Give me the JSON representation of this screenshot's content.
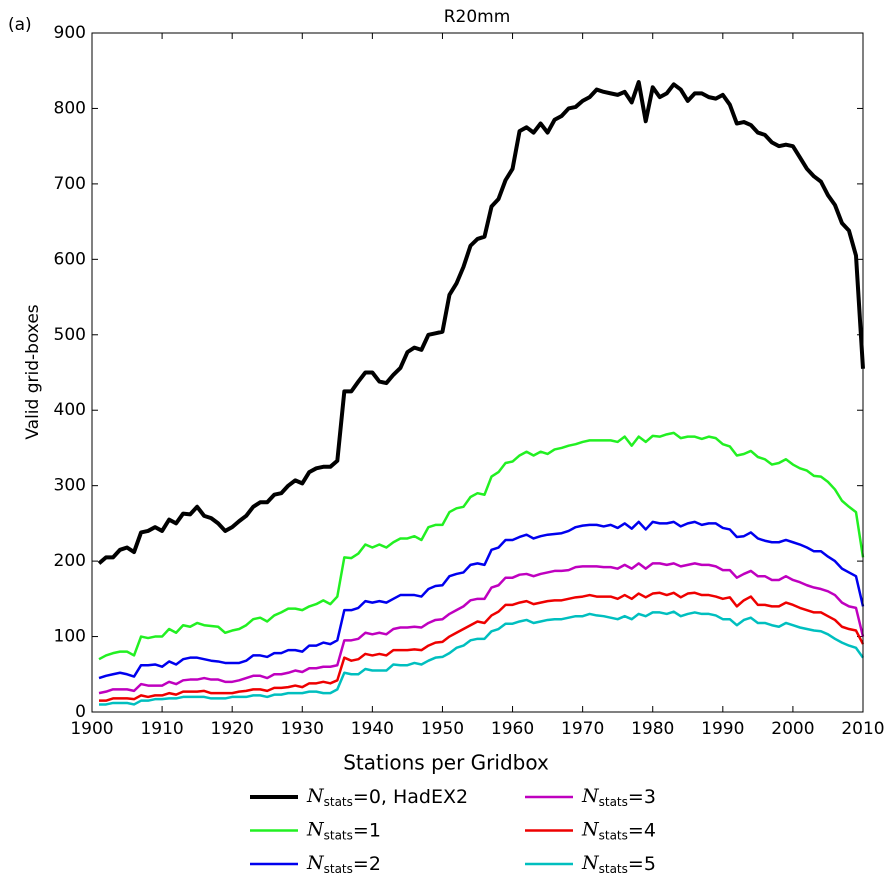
{
  "chart_data": {
    "type": "line",
    "panel_label": "(a)",
    "title": "R20mm",
    "x_label": "Stations per Gridbox",
    "y_label": "Valid grid-boxes",
    "xlim": [
      1900,
      2010
    ],
    "xticks": [
      1900,
      1910,
      1920,
      1930,
      1940,
      1950,
      1960,
      1970,
      1980,
      1990,
      2000,
      2010
    ],
    "ylim": [
      0,
      900
    ],
    "yticks": [
      0,
      100,
      200,
      300,
      400,
      500,
      600,
      700,
      800,
      900
    ],
    "x": [
      1901,
      1902,
      1903,
      1904,
      1905,
      1906,
      1907,
      1908,
      1909,
      1910,
      1911,
      1912,
      1913,
      1914,
      1915,
      1916,
      1917,
      1918,
      1919,
      1920,
      1921,
      1922,
      1923,
      1924,
      1925,
      1926,
      1927,
      1928,
      1929,
      1930,
      1931,
      1932,
      1933,
      1934,
      1935,
      1936,
      1937,
      1938,
      1939,
      1940,
      1941,
      1942,
      1943,
      1944,
      1945,
      1946,
      1947,
      1948,
      1949,
      1950,
      1951,
      1952,
      1953,
      1954,
      1955,
      1956,
      1957,
      1958,
      1959,
      1960,
      1961,
      1962,
      1963,
      1964,
      1965,
      1966,
      1967,
      1968,
      1969,
      1970,
      1971,
      1972,
      1973,
      1974,
      1975,
      1976,
      1977,
      1978,
      1979,
      1980,
      1981,
      1982,
      1983,
      1984,
      1985,
      1986,
      1987,
      1988,
      1989,
      1990,
      1991,
      1992,
      1993,
      1994,
      1995,
      1996,
      1997,
      1998,
      1999,
      2000,
      2001,
      2002,
      2003,
      2004,
      2005,
      2006,
      2007,
      2008,
      2009,
      2010
    ],
    "series": [
      {
        "name": "Nstats=0, HadEX2",
        "color": "#000000",
        "values": [
          197,
          205,
          205,
          215,
          218,
          212,
          238,
          240,
          245,
          240,
          255,
          250,
          263,
          262,
          272,
          260,
          257,
          250,
          240,
          245,
          253,
          260,
          272,
          278,
          278,
          288,
          290,
          300,
          307,
          303,
          318,
          323,
          325,
          325,
          333,
          425,
          425,
          438,
          450,
          450,
          438,
          436,
          447,
          456,
          477,
          483,
          480,
          500,
          502,
          504,
          553,
          568,
          590,
          618,
          627,
          630,
          670,
          680,
          705,
          720,
          770,
          775,
          768,
          780,
          768,
          785,
          790,
          800,
          802,
          810,
          815,
          825,
          822,
          820,
          818,
          822,
          808,
          835,
          783,
          828,
          815,
          820,
          832,
          825,
          810,
          820,
          820,
          815,
          813,
          818,
          805,
          780,
          782,
          778,
          768,
          765,
          755,
          750,
          752,
          750,
          735,
          720,
          710,
          703,
          685,
          672,
          648,
          638,
          605,
          455
        ]
      },
      {
        "name": "Nstats=1",
        "color": "#22f022",
        "values": [
          70,
          75,
          78,
          80,
          80,
          75,
          100,
          98,
          100,
          100,
          110,
          105,
          115,
          113,
          118,
          115,
          114,
          113,
          105,
          108,
          110,
          115,
          123,
          125,
          120,
          128,
          132,
          137,
          137,
          135,
          140,
          143,
          148,
          143,
          153,
          205,
          204,
          210,
          222,
          218,
          222,
          218,
          225,
          230,
          230,
          233,
          228,
          245,
          248,
          248,
          265,
          270,
          272,
          285,
          290,
          288,
          312,
          318,
          330,
          332,
          340,
          345,
          340,
          345,
          342,
          348,
          350,
          353,
          355,
          358,
          360,
          360,
          360,
          360,
          358,
          365,
          353,
          365,
          358,
          366,
          365,
          368,
          370,
          363,
          365,
          365,
          362,
          365,
          363,
          355,
          352,
          340,
          342,
          346,
          338,
          335,
          328,
          330,
          335,
          328,
          323,
          320,
          313,
          312,
          305,
          295,
          280,
          272,
          265,
          205
        ]
      },
      {
        "name": "Nstats=2",
        "color": "#0000ee",
        "values": [
          45,
          48,
          50,
          52,
          50,
          47,
          62,
          62,
          63,
          60,
          67,
          63,
          70,
          72,
          72,
          70,
          68,
          67,
          65,
          65,
          65,
          68,
          75,
          75,
          73,
          78,
          78,
          82,
          82,
          80,
          88,
          88,
          92,
          90,
          95,
          135,
          135,
          138,
          147,
          145,
          147,
          145,
          150,
          155,
          155,
          155,
          153,
          163,
          167,
          168,
          180,
          183,
          185,
          195,
          197,
          195,
          215,
          218,
          228,
          228,
          232,
          235,
          230,
          233,
          235,
          236,
          237,
          240,
          245,
          247,
          248,
          248,
          246,
          248,
          244,
          250,
          243,
          252,
          242,
          252,
          250,
          250,
          252,
          246,
          250,
          252,
          248,
          250,
          250,
          244,
          242,
          232,
          233,
          238,
          230,
          227,
          225,
          225,
          228,
          225,
          222,
          218,
          213,
          213,
          206,
          200,
          190,
          185,
          180,
          140
        ]
      },
      {
        "name": "Nstats=3",
        "color": "#bf00bf",
        "values": [
          25,
          27,
          30,
          30,
          30,
          28,
          37,
          35,
          35,
          35,
          40,
          37,
          42,
          43,
          43,
          45,
          43,
          43,
          40,
          40,
          42,
          45,
          48,
          48,
          45,
          50,
          50,
          52,
          55,
          53,
          58,
          58,
          60,
          60,
          62,
          95,
          95,
          97,
          105,
          103,
          105,
          103,
          110,
          112,
          112,
          113,
          112,
          118,
          122,
          123,
          130,
          135,
          140,
          148,
          150,
          150,
          165,
          168,
          178,
          178,
          182,
          183,
          180,
          183,
          185,
          187,
          187,
          188,
          192,
          193,
          193,
          193,
          192,
          192,
          190,
          195,
          190,
          197,
          190,
          197,
          197,
          195,
          197,
          193,
          195,
          197,
          195,
          195,
          193,
          188,
          188,
          178,
          183,
          187,
          180,
          180,
          175,
          175,
          180,
          175,
          172,
          168,
          165,
          163,
          160,
          155,
          145,
          140,
          138,
          100
        ]
      },
      {
        "name": "Nstats=4",
        "color": "#ee0000",
        "values": [
          15,
          15,
          18,
          18,
          18,
          17,
          22,
          20,
          22,
          22,
          25,
          23,
          27,
          27,
          27,
          28,
          25,
          25,
          25,
          25,
          27,
          28,
          30,
          30,
          28,
          32,
          32,
          33,
          35,
          33,
          38,
          38,
          40,
          38,
          42,
          72,
          68,
          70,
          77,
          75,
          77,
          75,
          82,
          82,
          82,
          83,
          82,
          88,
          92,
          93,
          100,
          105,
          110,
          115,
          120,
          118,
          128,
          133,
          142,
          142,
          145,
          147,
          143,
          145,
          147,
          148,
          148,
          150,
          152,
          153,
          155,
          153,
          153,
          153,
          150,
          155,
          150,
          157,
          152,
          157,
          158,
          155,
          158,
          152,
          157,
          158,
          155,
          155,
          153,
          150,
          152,
          140,
          148,
          153,
          142,
          142,
          140,
          140,
          145,
          142,
          138,
          135,
          132,
          132,
          127,
          122,
          113,
          110,
          108,
          90
        ]
      },
      {
        "name": "Nstats=5",
        "color": "#00bfbf",
        "values": [
          10,
          10,
          12,
          12,
          12,
          10,
          15,
          15,
          17,
          17,
          18,
          18,
          20,
          20,
          20,
          20,
          18,
          18,
          18,
          20,
          20,
          20,
          22,
          22,
          20,
          23,
          23,
          25,
          25,
          25,
          27,
          27,
          25,
          25,
          30,
          52,
          50,
          50,
          57,
          55,
          55,
          55,
          63,
          62,
          62,
          65,
          63,
          68,
          72,
          73,
          78,
          85,
          88,
          95,
          97,
          97,
          107,
          110,
          117,
          117,
          120,
          122,
          118,
          120,
          122,
          123,
          123,
          125,
          127,
          127,
          130,
          128,
          127,
          125,
          123,
          127,
          123,
          130,
          127,
          132,
          132,
          130,
          133,
          127,
          130,
          132,
          130,
          130,
          128,
          123,
          123,
          115,
          122,
          125,
          118,
          118,
          115,
          113,
          118,
          115,
          112,
          110,
          108,
          107,
          103,
          97,
          92,
          88,
          85,
          72
        ]
      }
    ]
  }
}
